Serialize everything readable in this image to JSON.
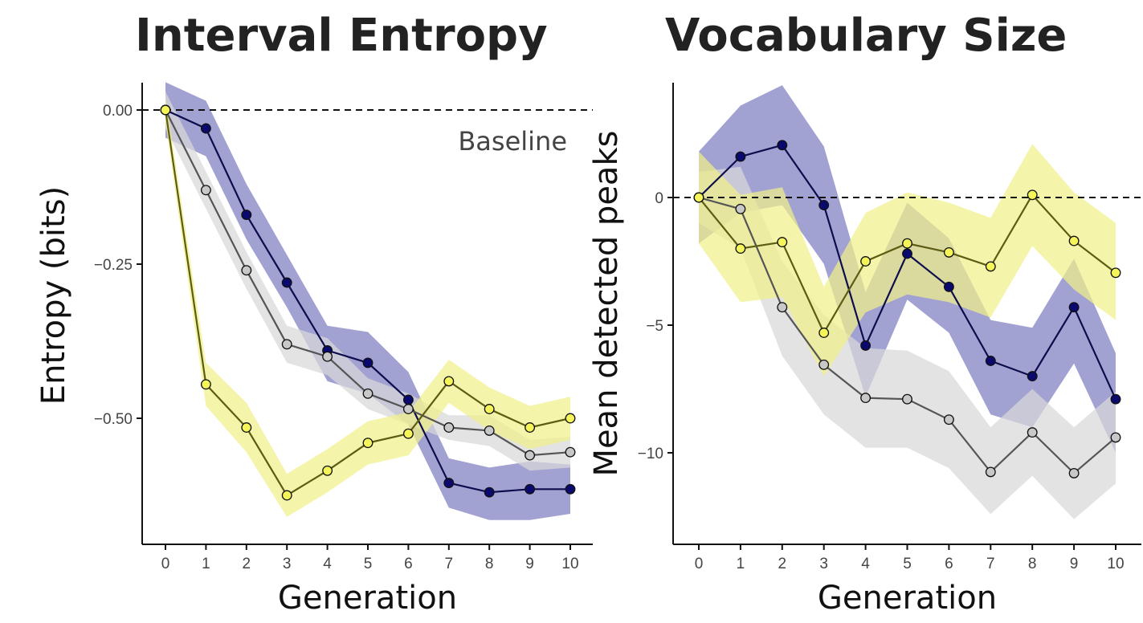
{
  "chart_data": [
    {
      "type": "line",
      "title": "Interval Entropy",
      "xlabel": "Generation",
      "ylabel": "Entropy (bits)",
      "x": [
        0,
        1,
        2,
        3,
        4,
        5,
        6,
        7,
        8,
        9,
        10
      ],
      "xticks": [
        "0",
        "1",
        "2",
        "3",
        "4",
        "5",
        "6",
        "7",
        "8",
        "9",
        "10"
      ],
      "yticks": [
        0.0,
        -0.25,
        -0.5
      ],
      "ytick_labels": [
        "0.00",
        "−0.25",
        "−0.50"
      ],
      "ylim": [
        -0.7,
        0.04
      ],
      "baseline": {
        "value": 0,
        "label": "Baseline"
      },
      "series": [
        {
          "name": "navy",
          "color": "#0a0a6e",
          "band": "#7e7ec0",
          "values": [
            0.0,
            -0.03,
            -0.17,
            -0.28,
            -0.39,
            -0.41,
            -0.47,
            -0.605,
            -0.62,
            -0.615,
            -0.615
          ],
          "lower": [
            -0.045,
            -0.075,
            -0.21,
            -0.32,
            -0.44,
            -0.46,
            -0.51,
            -0.645,
            -0.665,
            -0.665,
            -0.655
          ],
          "upper": [
            0.045,
            0.015,
            -0.12,
            -0.235,
            -0.35,
            -0.36,
            -0.425,
            -0.565,
            -0.58,
            -0.57,
            -0.575
          ]
        },
        {
          "name": "gray",
          "color": "#c8c8c8",
          "band": "#d8d8d8",
          "values": [
            0.0,
            -0.13,
            -0.26,
            -0.38,
            -0.4,
            -0.46,
            -0.485,
            -0.515,
            -0.52,
            -0.56,
            -0.555
          ],
          "lower": [
            -0.03,
            -0.16,
            -0.29,
            -0.41,
            -0.43,
            -0.485,
            -0.51,
            -0.535,
            -0.545,
            -0.585,
            -0.58
          ],
          "upper": [
            0.03,
            -0.1,
            -0.23,
            -0.35,
            -0.37,
            -0.435,
            -0.46,
            -0.495,
            -0.495,
            -0.535,
            -0.53
          ]
        },
        {
          "name": "yellow",
          "color": "#f5f55a",
          "band": "#f0f08a",
          "values": [
            0.0,
            -0.445,
            -0.515,
            -0.625,
            -0.585,
            -0.54,
            -0.525,
            -0.44,
            -0.485,
            -0.515,
            -0.5
          ],
          "lower": [
            -0.02,
            -0.48,
            -0.555,
            -0.66,
            -0.62,
            -0.575,
            -0.56,
            -0.475,
            -0.52,
            -0.55,
            -0.535
          ],
          "upper": [
            0.02,
            -0.41,
            -0.475,
            -0.59,
            -0.55,
            -0.505,
            -0.49,
            -0.405,
            -0.45,
            -0.48,
            -0.465
          ]
        }
      ]
    },
    {
      "type": "line",
      "title": "Vocabulary Size",
      "xlabel": "Generation",
      "ylabel": "Mean detected peaks",
      "x": [
        0,
        1,
        2,
        3,
        4,
        5,
        6,
        7,
        8,
        9,
        10
      ],
      "xticks": [
        "0",
        "1",
        "2",
        "3",
        "4",
        "5",
        "6",
        "7",
        "8",
        "9",
        "10"
      ],
      "yticks": [
        0,
        -5,
        -10
      ],
      "ytick_labels": [
        "0",
        "−5",
        "−10"
      ],
      "ylim": [
        -13.2,
        4.5
      ],
      "baseline": {
        "value": 0
      },
      "series": [
        {
          "name": "navy",
          "color": "#0a0a6e",
          "band": "#7e7ec0",
          "values": [
            0.0,
            1.6,
            2.05,
            -0.3,
            -5.8,
            -2.2,
            -3.5,
            -6.4,
            -7.0,
            -4.3,
            -7.9
          ],
          "lower": [
            -1.8,
            -0.6,
            -0.3,
            -2.6,
            -7.8,
            -4.0,
            -5.3,
            -8.5,
            -9.0,
            -6.5,
            -10.0
          ],
          "upper": [
            1.8,
            3.6,
            4.4,
            2.0,
            -3.7,
            -0.2,
            -1.6,
            -4.8,
            -5.1,
            -2.4,
            -6.1
          ]
        },
        {
          "name": "gray",
          "color": "#c8c8c8",
          "band": "#d8d8d8",
          "values": [
            0.0,
            -0.45,
            -4.3,
            -6.55,
            -7.85,
            -7.9,
            -8.7,
            -10.75,
            -9.2,
            -10.8,
            -9.4
          ],
          "lower": [
            -1.0,
            -2.0,
            -6.2,
            -8.5,
            -9.8,
            -9.8,
            -10.6,
            -12.4,
            -10.9,
            -12.6,
            -11.2
          ],
          "upper": [
            1.0,
            1.2,
            -2.5,
            -4.6,
            -5.9,
            -6.0,
            -6.8,
            -9.0,
            -7.5,
            -9.0,
            -7.6
          ]
        },
        {
          "name": "yellow",
          "color": "#f5f55a",
          "band": "#f0f08a",
          "values": [
            0.0,
            -2.0,
            -1.75,
            -5.3,
            -2.5,
            -1.8,
            -2.15,
            -2.7,
            0.1,
            -1.7,
            -2.95
          ],
          "lower": [
            -1.8,
            -4.1,
            -3.9,
            -7.0,
            -4.5,
            -3.8,
            -4.1,
            -4.7,
            -1.9,
            -3.6,
            -4.8
          ],
          "upper": [
            1.8,
            0.1,
            0.4,
            -3.5,
            -0.6,
            0.2,
            -0.2,
            -0.8,
            2.1,
            0.2,
            -1.0
          ]
        }
      ]
    }
  ]
}
